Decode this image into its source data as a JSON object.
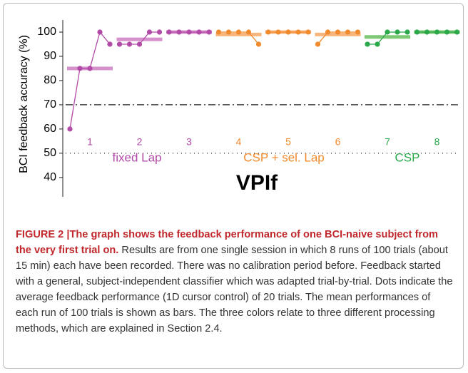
{
  "chart_data": {
    "type": "dot",
    "title": "VPIf",
    "y_label": "BCI feedback accuracy  (%)",
    "ylim": [
      32,
      105
    ],
    "yticks": [
      40,
      50,
      60,
      70,
      80,
      90,
      100
    ],
    "reference_lines": [
      70,
      50
    ],
    "series": [
      {
        "label": "1",
        "color": "#b24aa8",
        "bar_color": "#d690cb",
        "values": [
          60,
          85,
          85,
          100,
          95
        ],
        "mean": 85
      },
      {
        "label": "2",
        "color": "#b24aa8",
        "bar_color": "#d690cb",
        "values": [
          95,
          95,
          95,
          100,
          100
        ],
        "mean": 97
      },
      {
        "label": "3",
        "color": "#b24aa8",
        "bar_color": "#d690cb",
        "values": [
          100,
          100,
          100,
          100,
          100
        ],
        "mean": 100
      },
      {
        "label": "4",
        "color": "#f08a2c",
        "bar_color": "#f8b57c",
        "values": [
          100,
          100,
          100,
          100,
          95
        ],
        "mean": 99
      },
      {
        "label": "5",
        "color": "#f08a2c",
        "bar_color": "#f8b57c",
        "values": [
          100,
          100,
          100,
          100,
          100
        ],
        "mean": 100
      },
      {
        "label": "6",
        "color": "#f08a2c",
        "bar_color": "#f8b57c",
        "values": [
          95,
          100,
          100,
          100,
          100
        ],
        "mean": 99
      },
      {
        "label": "7",
        "color": "#2aa84a",
        "bar_color": "#7cc874",
        "values": [
          95,
          95,
          100,
          100,
          100
        ],
        "mean": 98
      },
      {
        "label": "8",
        "color": "#2aa84a",
        "bar_color": "#7cc874",
        "values": [
          100,
          100,
          100,
          100,
          100
        ],
        "mean": 100
      }
    ],
    "groups": [
      {
        "label": "fixed Lap",
        "color": "#b24aa8"
      },
      {
        "label": "CSP + sel. Lap",
        "color": "#f08a2c"
      },
      {
        "label": "CSP",
        "color": "#2aa84a"
      }
    ]
  },
  "caption": {
    "title": "FIGURE 2 |The graph shows the feedback performance of one BCI-naive subject from the very first trial on.",
    "text": "Results are from one single session in which 8 runs of 100 trials (about 15 min) each have been recorded. There was no calibration period before. Feedback started with a general, subject-independent classifier which was adapted trial-by-trial. Dots indicate the average feedback performance (1D cursor control) of 20 trials. The mean performances of each run of 100 trials is shown as bars. The three colors relate to three different processing methods, which are explained in Section 2.4."
  }
}
